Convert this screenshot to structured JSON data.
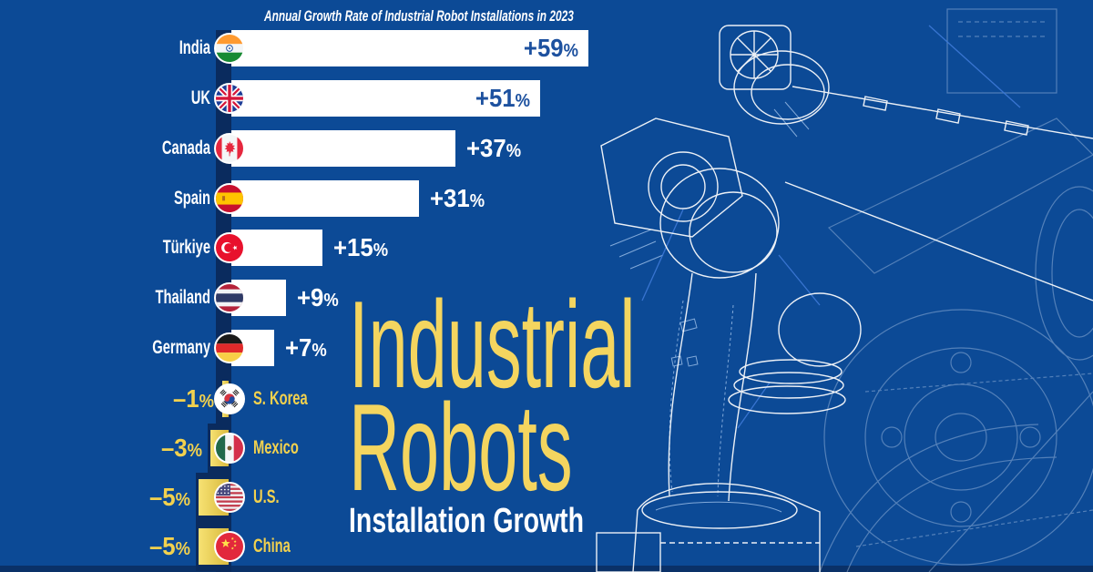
{
  "colors": {
    "background": "#0c4a96",
    "axis_band_dark": "#0a2b5e",
    "footer_strip": "#0a3168",
    "positive_bar": "#ffffff",
    "negative_bar_light": "#f7e273",
    "negative_bar_dark": "#d9b93d",
    "value_inside_blue": "#1d519f",
    "yellow_text": "#f2d14e",
    "headline_yellow": "#f4d55f",
    "blueprint_line": "#ffffff",
    "blueprint_faded": "#c6d9f2"
  },
  "headline": {
    "line1": "Industrial",
    "line2": "Robots",
    "subtitle": "Installation Growth"
  },
  "chart_data": {
    "type": "bar",
    "orientation": "horizontal",
    "title": "Annual Growth Rate of Industrial Robot Installations in 2023",
    "unit": "%",
    "axis_range": [
      -5,
      59
    ],
    "grid": false,
    "legend": false,
    "categories": [
      "India",
      "UK",
      "Canada",
      "Spain",
      "Türkiye",
      "Thailand",
      "Germany",
      "S. Korea",
      "Mexico",
      "U.S.",
      "China"
    ],
    "values": [
      59,
      51,
      37,
      31,
      15,
      9,
      7,
      -1,
      -3,
      -5,
      -5
    ],
    "value_labels": [
      "+59%",
      "+51%",
      "+37%",
      "+31%",
      "+15%",
      "+9%",
      "+7%",
      "–1%",
      "–3%",
      "–5%",
      "–5%"
    ],
    "label_placement": [
      "inside",
      "inside",
      "outside",
      "outside",
      "outside",
      "outside",
      "outside",
      "negative",
      "negative",
      "negative",
      "negative"
    ],
    "flag_icons": [
      "india-flag-icon",
      "uk-flag-icon",
      "canada-flag-icon",
      "spain-flag-icon",
      "turkiye-flag-icon",
      "thailand-flag-icon",
      "germany-flag-icon",
      "south-korea-flag-icon",
      "mexico-flag-icon",
      "us-flag-icon",
      "china-flag-icon"
    ]
  }
}
